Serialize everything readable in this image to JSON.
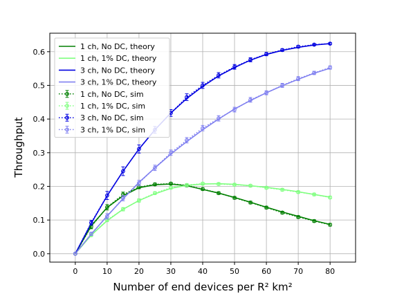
{
  "chart_data": {
    "type": "line",
    "title": "",
    "xlabel": "Number of end devices per R² km²",
    "ylabel": "Throughput",
    "xlim": [
      -8,
      88
    ],
    "ylim": [
      -0.025,
      0.655
    ],
    "xticks": [
      0,
      10,
      20,
      30,
      40,
      50,
      60,
      70,
      80
    ],
    "yticks": [
      0.0,
      0.1,
      0.2,
      0.3,
      0.4,
      0.5,
      0.6
    ],
    "grid": true,
    "legend_position": "top-left",
    "series": [
      {
        "name": "1 ch, No DC, theory",
        "kind": "theory",
        "color": "#007f00",
        "x": [
          0,
          5,
          10,
          15,
          20,
          25,
          30,
          35,
          40,
          45,
          50,
          55,
          60,
          65,
          70,
          75,
          80
        ],
        "y": [
          0.0,
          0.083,
          0.137,
          0.172,
          0.196,
          0.205,
          0.207,
          0.202,
          0.191,
          0.18,
          0.167,
          0.153,
          0.138,
          0.124,
          0.111,
          0.098,
          0.087
        ]
      },
      {
        "name": "1 ch, 1% DC, theory",
        "kind": "theory",
        "color": "#80ff80",
        "x": [
          0,
          5,
          10,
          15,
          20,
          25,
          30,
          35,
          40,
          45,
          50,
          55,
          60,
          65,
          70,
          75,
          80
        ],
        "y": [
          0.0,
          0.055,
          0.098,
          0.132,
          0.158,
          0.178,
          0.194,
          0.203,
          0.207,
          0.208,
          0.206,
          0.202,
          0.197,
          0.191,
          0.184,
          0.176,
          0.168
        ]
      },
      {
        "name": "3 ch, No DC, theory",
        "kind": "theory",
        "color": "#0000e0",
        "x": [
          0,
          5,
          10,
          15,
          20,
          25,
          30,
          35,
          40,
          45,
          50,
          55,
          60,
          65,
          70,
          75,
          80
        ],
        "y": [
          0.0,
          0.09,
          0.172,
          0.245,
          0.311,
          0.368,
          0.418,
          0.461,
          0.497,
          0.528,
          0.553,
          0.575,
          0.592,
          0.604,
          0.613,
          0.62,
          0.624
        ]
      },
      {
        "name": "3 ch, 1% DC, theory",
        "kind": "theory",
        "color": "#8080f0",
        "x": [
          0,
          5,
          10,
          15,
          20,
          25,
          30,
          35,
          40,
          45,
          50,
          55,
          60,
          65,
          70,
          75,
          80
        ],
        "y": [
          0.0,
          0.058,
          0.112,
          0.163,
          0.212,
          0.255,
          0.296,
          0.333,
          0.368,
          0.4,
          0.43,
          0.455,
          0.478,
          0.499,
          0.518,
          0.536,
          0.551
        ]
      },
      {
        "name": "1 ch, No DC, sim",
        "kind": "sim",
        "color": "#007f00",
        "x": [
          0,
          5,
          10,
          15,
          20,
          25,
          30,
          35,
          40,
          45,
          50,
          55,
          60,
          65,
          70,
          75,
          80
        ],
        "y": [
          0.0,
          0.08,
          0.138,
          0.176,
          0.198,
          0.206,
          0.208,
          0.203,
          0.192,
          0.18,
          0.166,
          0.152,
          0.137,
          0.122,
          0.109,
          0.097,
          0.086
        ],
        "err": [
          0,
          0.006,
          0.008,
          0.007,
          0.005,
          0.004,
          0.004,
          0.004,
          0.004,
          0.004,
          0.004,
          0.004,
          0.004,
          0.004,
          0.004,
          0.004,
          0.004
        ]
      },
      {
        "name": "1 ch, 1% DC, sim",
        "kind": "sim",
        "color": "#80ff80",
        "x": [
          0,
          5,
          10,
          15,
          20,
          25,
          30,
          35,
          40,
          45,
          50,
          55,
          60,
          65,
          70,
          75,
          80
        ],
        "y": [
          0.0,
          0.055,
          0.1,
          0.132,
          0.158,
          0.18,
          0.196,
          0.204,
          0.208,
          0.207,
          0.205,
          0.202,
          0.196,
          0.19,
          0.183,
          0.176,
          0.167
        ],
        "err": [
          0,
          0.004,
          0.005,
          0.005,
          0.005,
          0.004,
          0.004,
          0.004,
          0.004,
          0.004,
          0.004,
          0.004,
          0.004,
          0.004,
          0.004,
          0.004,
          0.004
        ]
      },
      {
        "name": "3 ch, No DC, sim",
        "kind": "sim",
        "color": "#0000e0",
        "x": [
          0,
          5,
          10,
          15,
          20,
          25,
          30,
          35,
          40,
          45,
          50,
          55,
          60,
          65,
          70,
          75,
          80
        ],
        "y": [
          0.0,
          0.092,
          0.173,
          0.245,
          0.311,
          0.368,
          0.418,
          0.465,
          0.5,
          0.53,
          0.555,
          0.576,
          0.593,
          0.605,
          0.615,
          0.621,
          0.624
        ],
        "err": [
          0,
          0.007,
          0.012,
          0.013,
          0.012,
          0.01,
          0.01,
          0.01,
          0.009,
          0.008,
          0.007,
          0.006,
          0.005,
          0.004,
          0.004,
          0.003,
          0.003
        ]
      },
      {
        "name": "3 ch, 1% DC, sim",
        "kind": "sim",
        "color": "#8080f0",
        "x": [
          0,
          5,
          10,
          15,
          20,
          25,
          30,
          35,
          40,
          45,
          50,
          55,
          60,
          65,
          70,
          75,
          80
        ],
        "y": [
          0.0,
          0.059,
          0.111,
          0.165,
          0.21,
          0.255,
          0.3,
          0.337,
          0.373,
          0.402,
          0.428,
          0.457,
          0.478,
          0.5,
          0.52,
          0.537,
          0.553
        ],
        "err": [
          0,
          0.005,
          0.008,
          0.008,
          0.008,
          0.008,
          0.008,
          0.008,
          0.008,
          0.008,
          0.007,
          0.007,
          0.006,
          0.006,
          0.006,
          0.005,
          0.005
        ]
      }
    ]
  }
}
